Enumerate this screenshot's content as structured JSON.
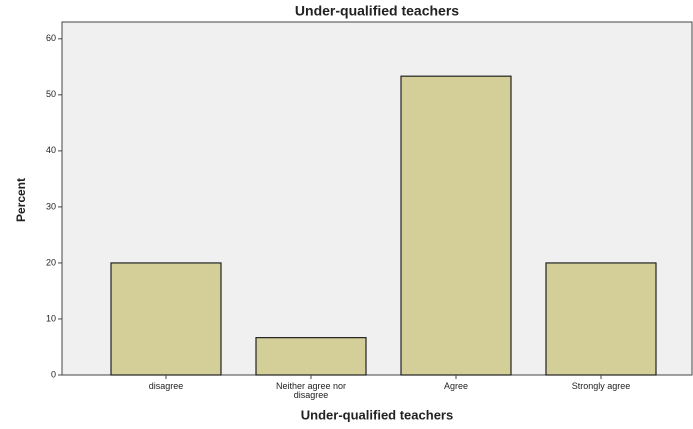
{
  "chart_data": {
    "type": "bar",
    "title": "Under-qualified teachers",
    "x_label": "Under-qualified teachers",
    "y_label": "Percent",
    "categories": [
      "disagree",
      "Neither agree nor disagree",
      "Agree",
      "Strongly agree"
    ],
    "values": [
      20,
      6.67,
      53.33,
      20
    ],
    "color": "#d4cf98",
    "ylim": [
      0,
      63
    ],
    "yticks": [
      0,
      10,
      20,
      30,
      40,
      50,
      60
    ],
    "grid": false
  }
}
